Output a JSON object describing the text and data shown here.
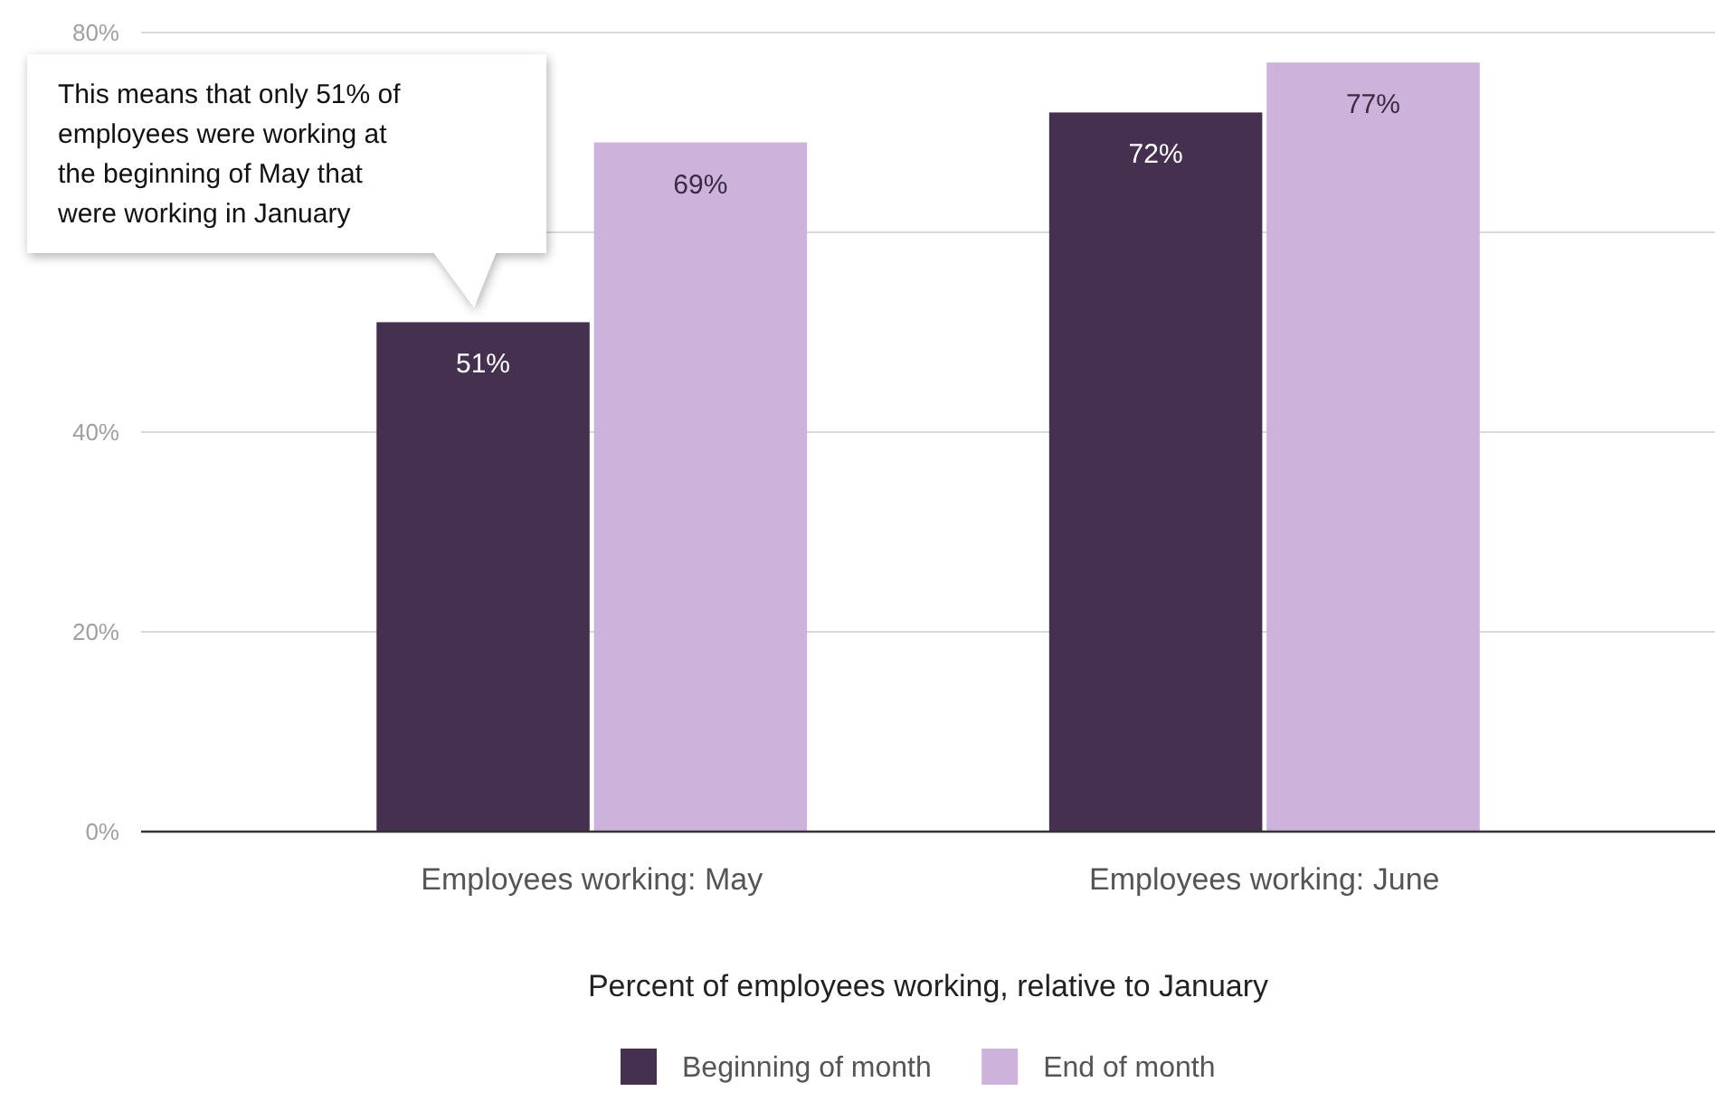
{
  "chart_data": {
    "type": "bar",
    "xlabel": "Percent of employees working, relative to January",
    "categories": [
      "Employees working: May",
      "Employees working: June"
    ],
    "series": [
      {
        "name": "Beginning of month",
        "color": "#46304f",
        "values": [
          51,
          72
        ]
      },
      {
        "name": "End of month",
        "color": "#cdb2dc",
        "values": [
          69,
          77
        ]
      }
    ],
    "ylim": [
      0,
      80
    ],
    "yticks": [
      {
        "value": 0,
        "label": "0%"
      },
      {
        "value": 20,
        "label": "20%"
      },
      {
        "value": 40,
        "label": "40%"
      },
      {
        "value": 60,
        "label": null
      },
      {
        "value": 80,
        "label": "80%"
      }
    ],
    "grid": "y",
    "legend": "bottom",
    "value_labels": [
      [
        "51%",
        "72%"
      ],
      [
        "69%",
        "77%"
      ]
    ],
    "annotations": [
      "This means that only 51% of employees were working at the beginning of May that were working in January"
    ]
  }
}
